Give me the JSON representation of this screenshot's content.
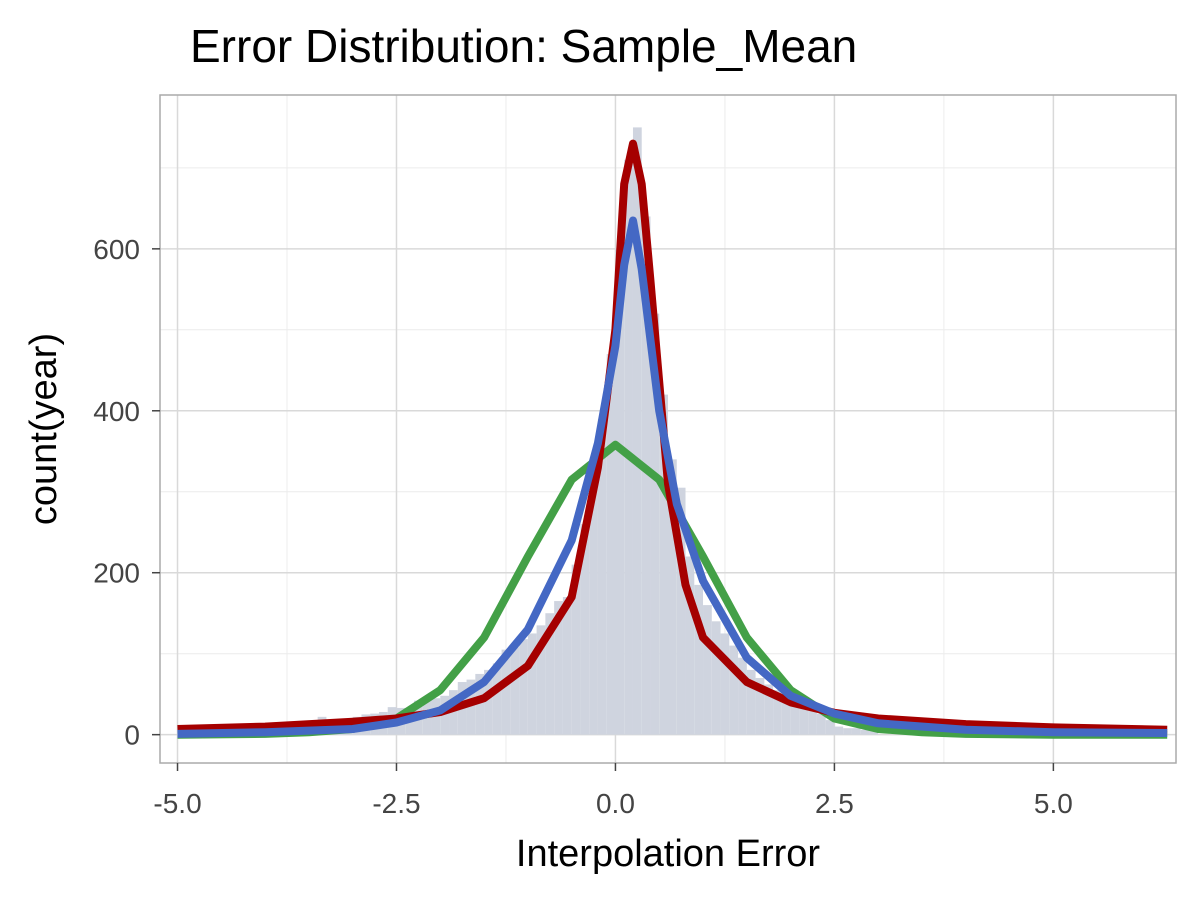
{
  "chart_data": {
    "type": "histogram",
    "title": "Error Distribution: Sample_Mean",
    "xlabel": "Interpolation Error",
    "ylabel": "count(year)",
    "xlim": [
      -5.2,
      6.4
    ],
    "ylim": [
      -35,
      790
    ],
    "xticks": [
      -5.0,
      -2.5,
      0.0,
      2.5,
      5.0
    ],
    "xtick_labels": [
      "-5.0",
      "-2.5",
      "0.0",
      "2.5",
      "5.0"
    ],
    "yticks": [
      0,
      200,
      400,
      600
    ],
    "ytick_labels": [
      "0",
      "200",
      "400",
      "600"
    ],
    "grid": true,
    "histogram": {
      "bin_width": 0.1,
      "color": "#cfd4df",
      "bins": [
        {
          "x": -3.45,
          "count": 15
        },
        {
          "x": -3.35,
          "count": 22
        },
        {
          "x": -3.25,
          "count": 18
        },
        {
          "x": -3.15,
          "count": 12
        },
        {
          "x": -3.05,
          "count": 15
        },
        {
          "x": -2.95,
          "count": 22
        },
        {
          "x": -2.85,
          "count": 25
        },
        {
          "x": -2.75,
          "count": 26
        },
        {
          "x": -2.65,
          "count": 28
        },
        {
          "x": -2.55,
          "count": 34
        },
        {
          "x": -2.45,
          "count": 33
        },
        {
          "x": -2.35,
          "count": 32
        },
        {
          "x": -2.25,
          "count": 42
        },
        {
          "x": -2.15,
          "count": 45
        },
        {
          "x": -2.05,
          "count": 45
        },
        {
          "x": -1.95,
          "count": 48
        },
        {
          "x": -1.85,
          "count": 55
        },
        {
          "x": -1.75,
          "count": 65
        },
        {
          "x": -1.65,
          "count": 68
        },
        {
          "x": -1.55,
          "count": 75
        },
        {
          "x": -1.45,
          "count": 80
        },
        {
          "x": -1.35,
          "count": 88
        },
        {
          "x": -1.25,
          "count": 105
        },
        {
          "x": -1.15,
          "count": 108
        },
        {
          "x": -1.05,
          "count": 118
        },
        {
          "x": -0.95,
          "count": 125
        },
        {
          "x": -0.85,
          "count": 135
        },
        {
          "x": -0.75,
          "count": 150
        },
        {
          "x": -0.65,
          "count": 165
        },
        {
          "x": -0.55,
          "count": 170
        },
        {
          "x": -0.45,
          "count": 210
        },
        {
          "x": -0.35,
          "count": 260
        },
        {
          "x": -0.25,
          "count": 320
        },
        {
          "x": -0.15,
          "count": 390
        },
        {
          "x": -0.05,
          "count": 470
        },
        {
          "x": 0.05,
          "count": 600
        },
        {
          "x": 0.15,
          "count": 710
        },
        {
          "x": 0.25,
          "count": 750
        },
        {
          "x": 0.35,
          "count": 640
        },
        {
          "x": 0.45,
          "count": 520
        },
        {
          "x": 0.55,
          "count": 420
        },
        {
          "x": 0.65,
          "count": 340
        },
        {
          "x": 0.75,
          "count": 305
        },
        {
          "x": 0.85,
          "count": 220
        },
        {
          "x": 0.95,
          "count": 185
        },
        {
          "x": 1.05,
          "count": 160
        },
        {
          "x": 1.15,
          "count": 140
        },
        {
          "x": 1.25,
          "count": 125
        },
        {
          "x": 1.35,
          "count": 110
        },
        {
          "x": 1.45,
          "count": 95
        },
        {
          "x": 1.55,
          "count": 80
        },
        {
          "x": 1.65,
          "count": 70
        },
        {
          "x": 1.75,
          "count": 62
        },
        {
          "x": 1.85,
          "count": 55
        },
        {
          "x": 1.95,
          "count": 48
        },
        {
          "x": 2.05,
          "count": 42
        },
        {
          "x": 2.15,
          "count": 38
        },
        {
          "x": 2.25,
          "count": 32
        },
        {
          "x": 2.35,
          "count": 26
        },
        {
          "x": 2.45,
          "count": 18
        },
        {
          "x": 2.55,
          "count": 10
        },
        {
          "x": 2.65,
          "count": 8
        },
        {
          "x": 2.75,
          "count": 8
        },
        {
          "x": 2.85,
          "count": 6
        },
        {
          "x": 2.95,
          "count": 5
        }
      ]
    },
    "series": [
      {
        "type": "line",
        "color": "#43a047",
        "x": [
          -5.0,
          -4.0,
          -3.5,
          -3.0,
          -2.5,
          -2.0,
          -1.5,
          -1.0,
          -0.5,
          0.0,
          0.5,
          1.0,
          1.5,
          2.0,
          2.5,
          3.0,
          3.5,
          4.0,
          5.0,
          6.3
        ],
        "y": [
          0,
          1,
          3,
          7,
          20,
          55,
          120,
          220,
          315,
          358,
          315,
          220,
          120,
          55,
          20,
          7,
          3,
          1,
          0,
          0
        ]
      },
      {
        "type": "line",
        "color": "#a50000",
        "x": [
          -5.0,
          -4.0,
          -3.0,
          -2.5,
          -2.0,
          -1.5,
          -1.0,
          -0.5,
          -0.2,
          0.0,
          0.1,
          0.2,
          0.3,
          0.4,
          0.6,
          0.8,
          1.0,
          1.5,
          2.0,
          2.5,
          3.0,
          4.0,
          5.0,
          6.3
        ],
        "y": [
          7,
          10,
          16,
          20,
          28,
          45,
          85,
          170,
          330,
          500,
          680,
          730,
          680,
          560,
          310,
          185,
          120,
          65,
          40,
          27,
          20,
          13,
          9,
          6
        ]
      },
      {
        "type": "line",
        "color": "#4468c4",
        "x": [
          -5.0,
          -4.0,
          -3.0,
          -2.5,
          -2.0,
          -1.5,
          -1.0,
          -0.5,
          -0.2,
          0.0,
          0.1,
          0.2,
          0.3,
          0.5,
          0.7,
          1.0,
          1.5,
          2.0,
          2.5,
          3.0,
          4.0,
          5.0,
          6.3
        ],
        "y": [
          1,
          3,
          7,
          15,
          30,
          65,
          130,
          240,
          360,
          480,
          580,
          635,
          575,
          400,
          285,
          190,
          95,
          48,
          26,
          14,
          6,
          3,
          2
        ]
      }
    ]
  }
}
